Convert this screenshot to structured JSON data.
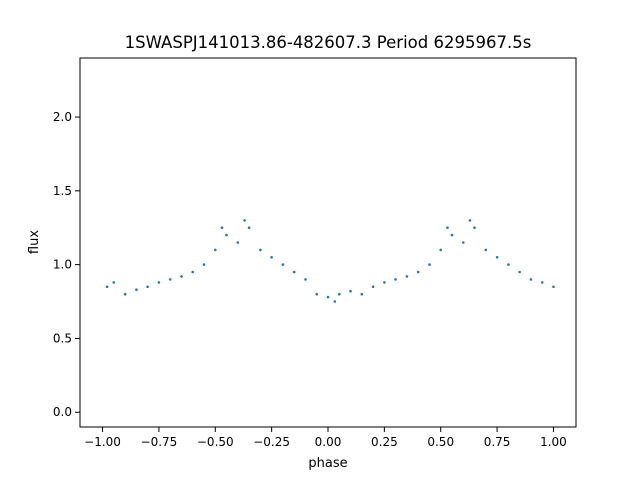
{
  "chart_data": {
    "type": "scatter",
    "title": "1SWASPJ141013.86-482607.3 Period 6295967.5s",
    "xlabel": "phase",
    "ylabel": "flux",
    "xlim": [
      -1.1,
      1.1
    ],
    "ylim": [
      -0.1,
      2.4
    ],
    "xticks": [
      -1.0,
      -0.75,
      -0.5,
      -0.25,
      0.0,
      0.25,
      0.5,
      0.75,
      1.0
    ],
    "xtick_labels": [
      "−1.00",
      "−0.75",
      "−0.50",
      "−0.25",
      "0.00",
      "0.25",
      "0.50",
      "0.75",
      "1.00"
    ],
    "yticks": [
      0.0,
      0.5,
      1.0,
      1.5,
      2.0
    ],
    "ytick_labels": [
      "0.0",
      "0.5",
      "1.0",
      "1.5",
      "2.0"
    ],
    "grid": false,
    "series_color": "#1f77b4",
    "x": [
      -0.98,
      -0.95,
      -0.9,
      -0.85,
      -0.8,
      -0.75,
      -0.7,
      -0.65,
      -0.6,
      -0.55,
      -0.5,
      -0.47,
      -0.45,
      -0.4,
      -0.37,
      -0.35,
      -0.3,
      -0.25,
      -0.2,
      -0.15,
      -0.1,
      -0.05,
      0.0,
      0.03,
      0.05,
      0.1,
      0.15,
      0.2,
      0.25,
      0.3,
      0.35,
      0.4,
      0.45,
      0.5,
      0.53,
      0.55,
      0.6,
      0.63,
      0.65,
      0.7,
      0.75,
      0.8,
      0.85,
      0.9,
      0.95,
      1.0
    ],
    "y": [
      0.85,
      0.88,
      0.8,
      0.83,
      0.85,
      0.88,
      0.9,
      0.92,
      0.95,
      1.0,
      1.1,
      1.25,
      1.2,
      1.15,
      1.3,
      1.25,
      1.1,
      1.05,
      1.0,
      0.95,
      0.9,
      0.8,
      0.78,
      0.75,
      0.8,
      0.82,
      0.8,
      0.85,
      0.88,
      0.9,
      0.92,
      0.95,
      1.0,
      1.1,
      1.25,
      1.2,
      1.15,
      1.3,
      1.25,
      1.1,
      1.05,
      1.0,
      0.95,
      0.9,
      0.88,
      0.85
    ]
  }
}
